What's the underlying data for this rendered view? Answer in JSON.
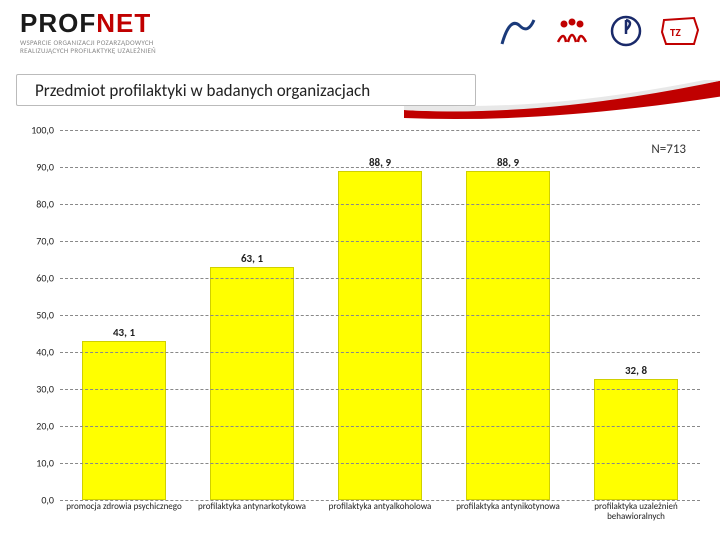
{
  "header": {
    "logo_text_1": "PROF",
    "logo_text_2": "NET",
    "logo_sub_1": "WSPARCIE ORGANIZACJI POZARZĄDOWYCH",
    "logo_sub_2": "REALIZUJĄCYCH PROFILAKTYKĘ UZALEŻNIEŃ"
  },
  "title": "Przedmiot profilaktyki  w badanych organizacjach",
  "n_label": "N=713",
  "chart": {
    "type": "bar",
    "ylim": [
      0,
      100
    ],
    "ytick_step": 10,
    "bar_color": "#ffff00",
    "grid_color": "#888888",
    "background_color": "#ffffff",
    "label_fontsize": 9,
    "value_fontsize": 11,
    "categories": [
      "promocja zdrowia psychicznego",
      "profilaktyka antynarkotykowa",
      "profilaktyka antyalkoholowa",
      "profilaktyka antynikotynowa",
      "profilaktyka uzależnień behawioralnych"
    ],
    "values": [
      43.1,
      63.1,
      88.9,
      88.9,
      32.8
    ],
    "value_labels": [
      "43, 1",
      "63, 1",
      "88, 9",
      "88, 9",
      "32, 8"
    ],
    "yticks": [
      "0,0",
      "10,0",
      "20,0",
      "30,0",
      "40,0",
      "50,0",
      "60,0",
      "70,0",
      "80,0",
      "90,0",
      "100,0"
    ]
  },
  "swoosh_color": "#c00000"
}
